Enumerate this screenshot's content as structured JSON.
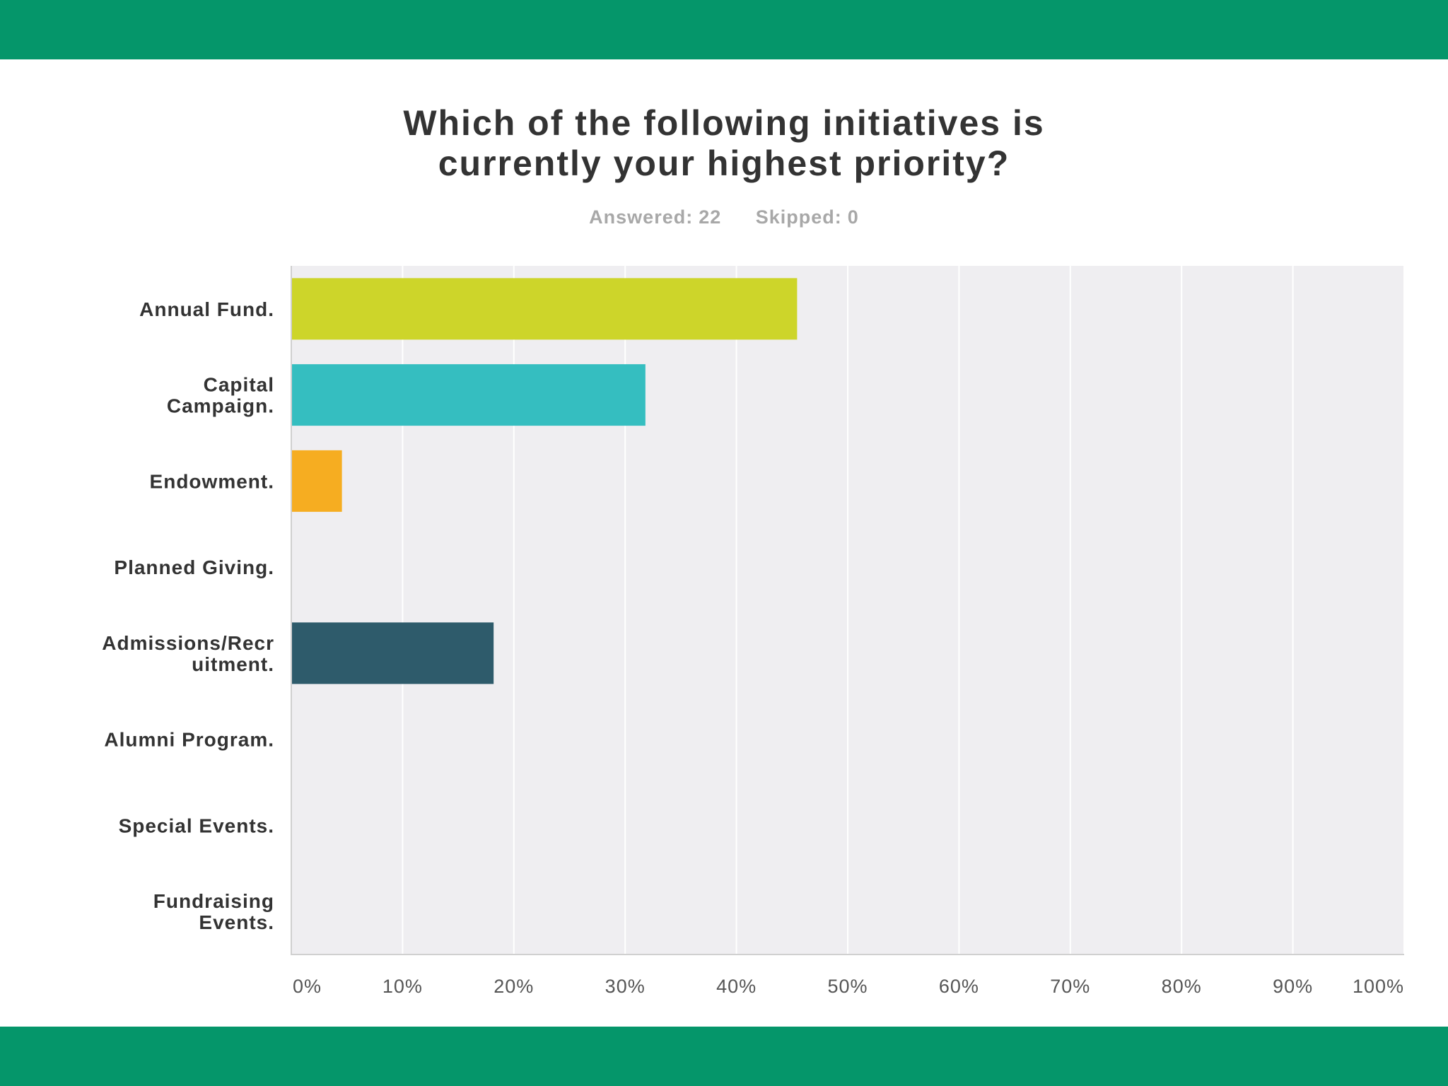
{
  "colors": {
    "band": "#05966a",
    "plot_background": "#efeef1",
    "gridline": "#ffffff",
    "title_text": "#333333",
    "stats_text": "#a8a8a8"
  },
  "header": {
    "title_line1": "Which of the following initiatives is",
    "title_line2": "currently your highest priority?"
  },
  "stats": {
    "answered_label": "Answered:",
    "answered_value": "22",
    "skipped_label": "Skipped:",
    "skipped_value": "0"
  },
  "chart_data": {
    "type": "bar",
    "orientation": "horizontal",
    "title": "Which of the following initiatives is currently your highest priority?",
    "categories": [
      [
        "Annual Fund."
      ],
      [
        "Capital",
        "Campaign."
      ],
      [
        "Endowment."
      ],
      [
        "Planned Giving."
      ],
      [
        "Admissions/Recr",
        "uitment."
      ],
      [
        "Alumni Program."
      ],
      [
        "Special Events."
      ],
      [
        "Fundraising",
        "Events."
      ]
    ],
    "values": [
      45.45,
      31.82,
      4.55,
      0,
      18.18,
      0,
      0,
      0
    ],
    "bar_colors": [
      "#cdd52a",
      "#35bec0",
      "#f6ad21",
      "#8c8c8c",
      "#2e5b6b",
      "#8c8c8c",
      "#8c8c8c",
      "#8c8c8c"
    ],
    "xlim": [
      0,
      100
    ],
    "xticks": [
      0,
      10,
      20,
      30,
      40,
      50,
      60,
      70,
      80,
      90,
      100
    ],
    "xtick_labels": [
      "0%",
      "10%",
      "20%",
      "30%",
      "40%",
      "50%",
      "60%",
      "70%",
      "80%",
      "90%",
      "100%"
    ],
    "grid": true,
    "legend": "none"
  }
}
